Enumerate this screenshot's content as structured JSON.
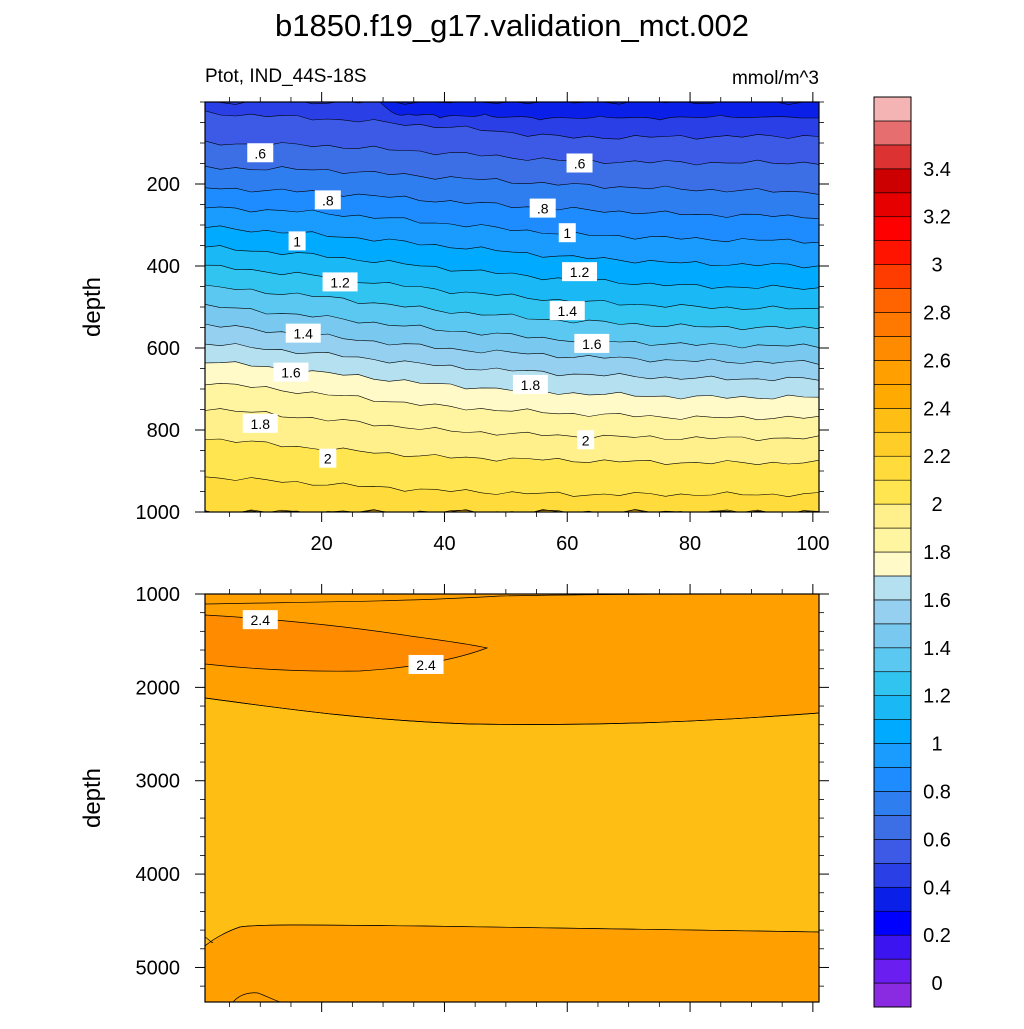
{
  "title": "b1850.f19_g17.validation_mct.002",
  "chart_data": {
    "type": "contour",
    "title": "b1850.f19_g17.validation_mct.002",
    "variable_label": "Ptot, IND_44S-18S",
    "units": "mmol/m^3",
    "colorbar": {
      "levels": [
        -0.1,
        0.0,
        0.1,
        0.2,
        0.3,
        0.4,
        0.5,
        0.6,
        0.7,
        0.8,
        0.9,
        1.0,
        1.1,
        1.2,
        1.3,
        1.4,
        1.5,
        1.6,
        1.7,
        1.8,
        1.9,
        2.0,
        2.1,
        2.2,
        2.3,
        2.4,
        2.5,
        2.6,
        2.7,
        2.8,
        2.9,
        3.0,
        3.1,
        3.2,
        3.3,
        3.4,
        3.5,
        3.6
      ],
      "colors": [
        "#8a2be2",
        "#6a1ef0",
        "#3c14f0",
        "#0000ff",
        "#0a20e8",
        "#2a3fe6",
        "#3c5ae6",
        "#3c6ee6",
        "#2f7ef0",
        "#1e8cff",
        "#1a9cff",
        "#00aaff",
        "#1ab8f5",
        "#32c4f0",
        "#5ac8f0",
        "#78c8f0",
        "#96d0f0",
        "#b4e0f0",
        "#fffac8",
        "#fff5a0",
        "#fff08c",
        "#ffe650",
        "#ffdc3c",
        "#ffcd28",
        "#ffbe14",
        "#ffaa00",
        "#ffa000",
        "#ff8c00",
        "#ff7800",
        "#ff6400",
        "#ff3c00",
        "#ff1400",
        "#ff0000",
        "#e60000",
        "#cc0000",
        "#dc3232",
        "#e66e6e",
        "#f5b4b4"
      ],
      "tick_labels": [
        "0",
        "0.2",
        "0.4",
        "0.6",
        "0.8",
        "1",
        "1.2",
        "1.4",
        "1.6",
        "1.8",
        "2",
        "2.2",
        "2.4",
        "2.6",
        "2.8",
        "3",
        "3.2",
        "3.4"
      ],
      "tick_values": [
        0,
        0.2,
        0.4,
        0.6,
        0.8,
        1.0,
        1.2,
        1.4,
        1.6,
        1.8,
        2.0,
        2.2,
        2.4,
        2.6,
        2.8,
        3.0,
        3.2,
        3.4
      ]
    },
    "panels": [
      {
        "name": "upper",
        "ylabel": "depth",
        "xlabel": "",
        "xlim": [
          1,
          101
        ],
        "ylim": [
          0,
          1000
        ],
        "y_inverted": true,
        "xticks": [
          20,
          40,
          60,
          80,
          100
        ],
        "xtick_labels": [
          "20",
          "40",
          "60",
          "80",
          "100"
        ],
        "yticks": [
          200,
          400,
          600,
          800,
          1000
        ],
        "ytick_labels": [
          "200",
          "400",
          "600",
          "800",
          "1000"
        ],
        "profile": {
          "x": [
            1,
            20,
            40,
            60,
            80,
            101
          ],
          "depths": [
            0,
            40,
            100,
            160,
            220,
            280,
            340,
            400,
            460,
            520,
            580,
            640,
            700,
            760,
            820,
            880,
            940,
            1000
          ],
          "values": [
            [
              0.46,
              0.44,
              0.42,
              0.4,
              0.41,
              0.42
            ],
            [
              0.52,
              0.5,
              0.47,
              0.43,
              0.44,
              0.45
            ],
            [
              0.6,
              0.59,
              0.56,
              0.52,
              0.52,
              0.52
            ],
            [
              0.7,
              0.69,
              0.66,
              0.63,
              0.62,
              0.62
            ],
            [
              0.82,
              0.8,
              0.76,
              0.73,
              0.71,
              0.7
            ],
            [
              0.95,
              0.92,
              0.87,
              0.83,
              0.81,
              0.8
            ],
            [
              1.07,
              1.03,
              0.98,
              0.93,
              0.91,
              0.9
            ],
            [
              1.2,
              1.15,
              1.09,
              1.04,
              1.01,
              1.0
            ],
            [
              1.32,
              1.27,
              1.2,
              1.15,
              1.12,
              1.11
            ],
            [
              1.45,
              1.39,
              1.32,
              1.27,
              1.24,
              1.23
            ],
            [
              1.58,
              1.52,
              1.45,
              1.4,
              1.37,
              1.36
            ],
            [
              1.72,
              1.66,
              1.59,
              1.55,
              1.52,
              1.51
            ],
            [
              1.83,
              1.78,
              1.72,
              1.68,
              1.66,
              1.66
            ],
            [
              1.92,
              1.88,
              1.83,
              1.8,
              1.78,
              1.78
            ],
            [
              2.0,
              1.97,
              1.93,
              1.91,
              1.9,
              1.9
            ],
            [
              2.06,
              2.04,
              2.02,
              2.01,
              2.0,
              2.0
            ],
            [
              2.13,
              2.11,
              2.09,
              2.08,
              2.08,
              2.08
            ],
            [
              2.19,
              2.17,
              2.16,
              2.15,
              2.15,
              2.15
            ]
          ]
        },
        "contour_labels": [
          {
            "text": ".6",
            "x": 10,
            "y": 125
          },
          {
            "text": ".6",
            "x": 62,
            "y": 150
          },
          {
            "text": ".8",
            "x": 21,
            "y": 240
          },
          {
            "text": ".8",
            "x": 56,
            "y": 260
          },
          {
            "text": "1",
            "x": 16,
            "y": 340
          },
          {
            "text": "1",
            "x": 60,
            "y": 320
          },
          {
            "text": "1.2",
            "x": 23,
            "y": 440
          },
          {
            "text": "1.2",
            "x": 62,
            "y": 415
          },
          {
            "text": "1.4",
            "x": 17,
            "y": 565
          },
          {
            "text": "1.4",
            "x": 60,
            "y": 510
          },
          {
            "text": "1.6",
            "x": 15,
            "y": 660
          },
          {
            "text": "1.6",
            "x": 64,
            "y": 590
          },
          {
            "text": "1.8",
            "x": 10,
            "y": 785
          },
          {
            "text": "1.8",
            "x": 54,
            "y": 690
          },
          {
            "text": "2",
            "x": 21,
            "y": 870
          },
          {
            "text": "2",
            "x": 63,
            "y": 825
          }
        ]
      },
      {
        "name": "lower",
        "ylabel": "depth",
        "xlabel": "",
        "xlim": [
          1,
          101
        ],
        "ylim": [
          1000,
          5370
        ],
        "y_inverted": true,
        "xticks": [
          20,
          40,
          60,
          80,
          100
        ],
        "xtick_labels": [],
        "yticks": [
          1000,
          2000,
          3000,
          4000,
          5000
        ],
        "ytick_labels": [
          "1000",
          "2000",
          "3000",
          "4000",
          "5000"
        ],
        "regions": [
          {
            "level_range": [
              2.3,
              2.4
            ],
            "description": "background"
          },
          {
            "level_range": [
              2.4,
              2.5
            ],
            "description": "lens near 1500 m"
          },
          {
            "level_range": [
              2.2,
              2.3
            ],
            "description": "mid-depth band"
          },
          {
            "level_range": [
              2.3,
              2.4
            ],
            "description": "bottom band"
          }
        ],
        "contour_labels": [
          {
            "text": "2.4",
            "x": 10,
            "y": 1280
          },
          {
            "text": "2.4",
            "x": 37,
            "y": 1760
          }
        ]
      }
    ]
  }
}
